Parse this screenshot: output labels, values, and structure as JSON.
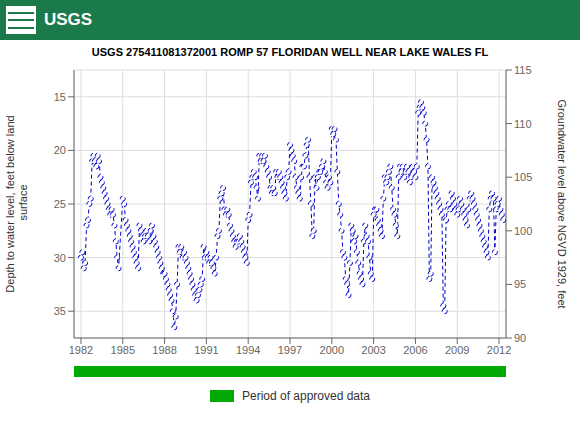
{
  "chart_data": {
    "type": "line",
    "title": "USGS 275411081372001 ROMP 57 FLORIDAN WELL NEAR LAKE WALES FL",
    "y_label": "Depth to water level, feet below land\n surface",
    "y2_label": "Groundwater level above NGVD 1929, feet",
    "annotations": [
      {
        "text": "USGS"
      },
      {
        "text": "Period of approved data",
        "color": "#00aa00"
      }
    ],
    "xlim": [
      1981.5,
      2012.5
    ],
    "xticks": [
      1982,
      1985,
      1988,
      1991,
      1994,
      1997,
      2000,
      2003,
      2006,
      2009,
      2012
    ],
    "ylim": [
      37.5,
      12.5
    ],
    "yticks": [
      15,
      20,
      25,
      30,
      35
    ],
    "y2lim": [
      90,
      115
    ],
    "y2ticks": [
      90,
      95,
      100,
      105,
      110,
      115
    ],
    "grid": true,
    "color": "#0000cc",
    "line_style": "dashed",
    "marker": "circle",
    "x": [
      1982.0,
      1982.1,
      1982.2,
      1982.3,
      1982.4,
      1982.5,
      1982.6,
      1982.7,
      1982.8,
      1982.9,
      1983.0,
      1983.1,
      1983.2,
      1983.3,
      1983.4,
      1983.5,
      1983.6,
      1983.7,
      1983.8,
      1983.9,
      1984.0,
      1984.1,
      1984.2,
      1984.3,
      1984.4,
      1984.5,
      1984.6,
      1984.7,
      1985.0,
      1985.1,
      1985.2,
      1985.3,
      1985.4,
      1985.5,
      1985.6,
      1985.7,
      1985.8,
      1985.9,
      1986.0,
      1986.1,
      1986.2,
      1986.3,
      1986.4,
      1986.5,
      1986.6,
      1986.7,
      1986.8,
      1986.9,
      1987.0,
      1987.1,
      1987.2,
      1987.3,
      1987.4,
      1987.5,
      1987.6,
      1987.7,
      1987.8,
      1987.9,
      1988.0,
      1988.1,
      1988.2,
      1988.3,
      1988.4,
      1988.5,
      1988.6,
      1988.7,
      1988.8,
      1988.9,
      1989.0,
      1989.1,
      1989.2,
      1989.3,
      1989.4,
      1989.5,
      1989.6,
      1989.7,
      1989.8,
      1989.9,
      1990.0,
      1990.1,
      1990.2,
      1990.3,
      1990.4,
      1990.5,
      1990.6,
      1990.7,
      1990.8,
      1990.9,
      1991.0,
      1991.1,
      1991.2,
      1991.3,
      1991.4,
      1991.5,
      1991.6,
      1991.7,
      1991.8,
      1991.9,
      1992.0,
      1992.1,
      1992.2,
      1992.3,
      1992.4,
      1992.5,
      1992.6,
      1992.7,
      1992.8,
      1992.9,
      1993.0,
      1993.1,
      1993.2,
      1993.3,
      1993.4,
      1993.5,
      1993.6,
      1993.7,
      1993.8,
      1993.9,
      1994.0,
      1994.1,
      1994.2,
      1994.3,
      1994.4,
      1994.5,
      1994.6,
      1994.7,
      1994.8,
      1994.9,
      1995.0,
      1995.1,
      1995.2,
      1995.3,
      1995.4,
      1995.5,
      1995.6,
      1995.7,
      1995.8,
      1995.9,
      1996.0,
      1996.1,
      1996.2,
      1996.3,
      1996.4,
      1996.5,
      1996.6,
      1996.7,
      1996.8,
      1996.9,
      1997.0,
      1997.1,
      1997.2,
      1997.3,
      1997.4,
      1997.5,
      1997.6,
      1997.7,
      1997.8,
      1997.9,
      1998.0,
      1998.1,
      1998.2,
      1998.3,
      1998.4,
      1998.5,
      1998.6,
      1998.7,
      1998.8,
      1998.9,
      1999.0,
      1999.1,
      1999.2,
      1999.3,
      1999.4,
      1999.5,
      1999.6,
      1999.7,
      1999.8,
      1999.9,
      2000.0,
      2000.1,
      2000.2,
      2000.3,
      2000.4,
      2000.5,
      2000.6,
      2000.7,
      2000.8,
      2000.9,
      2001.0,
      2001.1,
      2001.2,
      2001.3,
      2001.4,
      2001.5,
      2001.6,
      2001.7,
      2001.8,
      2001.9,
      2002.0,
      2002.1,
      2002.2,
      2002.3,
      2002.4,
      2002.5,
      2002.6,
      2002.7,
      2002.8,
      2002.9,
      2003.0,
      2003.1,
      2003.2,
      2003.3,
      2003.4,
      2003.5,
      2003.6,
      2003.7,
      2003.8,
      2003.9,
      2004.0,
      2004.1,
      2004.2,
      2004.3,
      2004.4,
      2004.5,
      2004.6,
      2004.7,
      2004.8,
      2004.9,
      2005.0,
      2005.1,
      2005.2,
      2005.3,
      2005.4,
      2005.5,
      2005.6,
      2005.7,
      2005.8,
      2005.9,
      2006.0,
      2006.1,
      2006.2,
      2006.3,
      2006.4,
      2006.5,
      2006.6,
      2006.7,
      2006.8,
      2006.9,
      2007.0,
      2007.1,
      2007.2,
      2007.3,
      2007.4,
      2007.5,
      2007.6,
      2007.7,
      2007.8,
      2007.9,
      2008.0,
      2008.1,
      2008.2,
      2008.3,
      2008.4,
      2008.5,
      2008.6,
      2008.7,
      2008.8,
      2008.9,
      2009.0,
      2009.1,
      2009.2,
      2009.3,
      2009.4,
      2009.5,
      2009.6,
      2009.7,
      2009.8,
      2009.9,
      2010.0,
      2010.1,
      2010.2,
      2010.3,
      2010.4,
      2010.5,
      2010.6,
      2010.7,
      2010.8,
      2010.9,
      2011.0,
      2011.1,
      2011.2,
      2011.3,
      2011.4,
      2011.5,
      2011.6,
      2011.7,
      2011.8,
      2011.9,
      2012.0,
      2012.1,
      2012.2,
      2012.3
    ],
    "values": [
      30.0,
      29.5,
      31.0,
      30.5,
      27.0,
      26.5,
      25.0,
      24.5,
      21.0,
      20.5,
      21.0,
      21.5,
      20.5,
      21.0,
      22.5,
      23.0,
      23.5,
      24.0,
      24.5,
      25.0,
      25.5,
      26.0,
      25.5,
      26.0,
      27.0,
      28.5,
      30.0,
      31.0,
      24.5,
      25.0,
      26.5,
      27.0,
      27.5,
      28.0,
      28.5,
      29.0,
      29.5,
      30.0,
      30.5,
      31.0,
      27.0,
      27.5,
      28.0,
      28.5,
      28.0,
      27.5,
      28.0,
      28.5,
      27.5,
      27.0,
      28.0,
      28.5,
      29.0,
      29.5,
      30.0,
      30.5,
      31.0,
      31.5,
      31.5,
      32.0,
      32.5,
      33.0,
      33.5,
      34.0,
      35.0,
      36.5,
      35.5,
      32.5,
      29.0,
      29.5,
      29.0,
      30.0,
      29.5,
      30.0,
      30.5,
      31.0,
      31.5,
      32.0,
      32.5,
      33.0,
      33.5,
      34.0,
      33.5,
      33.0,
      32.5,
      32.0,
      29.0,
      30.0,
      29.5,
      30.0,
      30.5,
      30.0,
      30.5,
      31.0,
      31.5,
      30.0,
      28.0,
      27.5,
      24.5,
      24.0,
      23.5,
      25.5,
      26.0,
      25.5,
      26.0,
      27.0,
      27.5,
      28.0,
      28.5,
      29.0,
      28.5,
      28.5,
      28.0,
      28.5,
      29.0,
      29.5,
      30.0,
      30.5,
      26.5,
      26.0,
      23.0,
      22.5,
      22.0,
      22.5,
      23.5,
      24.5,
      20.5,
      21.0,
      20.5,
      21.0,
      20.5,
      21.5,
      22.0,
      22.5,
      23.5,
      24.0,
      23.5,
      24.0,
      22.0,
      22.5,
      22.0,
      22.5,
      23.0,
      23.5,
      24.0,
      24.5,
      22.5,
      22.0,
      19.5,
      20.0,
      20.5,
      21.0,
      22.5,
      23.5,
      24.0,
      24.5,
      22.5,
      21.5,
      21.5,
      20.5,
      19.5,
      19.0,
      22.5,
      25.0,
      28.0,
      27.5,
      22.5,
      23.5,
      22.5,
      22.0,
      22.0,
      21.5,
      21.0,
      22.0,
      23.0,
      23.5,
      22.5,
      23.0,
      18.0,
      18.5,
      18.0,
      19.0,
      22.0,
      25.0,
      26.0,
      27.5,
      29.5,
      30.0,
      32.0,
      32.5,
      33.5,
      30.5,
      27.0,
      27.5,
      28.5,
      28.0,
      29.5,
      30.5,
      31.5,
      32.0,
      32.5,
      28.5,
      27.0,
      28.0,
      28.5,
      30.0,
      31.5,
      32.0,
      26.0,
      25.5,
      25.5,
      26.5,
      27.0,
      27.5,
      28.0,
      24.5,
      22.5,
      23.0,
      22.5,
      22.0,
      21.5,
      23.5,
      25.5,
      26.0,
      27.0,
      28.0,
      22.5,
      21.5,
      22.0,
      21.5,
      22.5,
      22.0,
      21.5,
      22.0,
      23.0,
      22.5,
      21.5,
      22.0,
      22.5,
      21.5,
      16.5,
      16.0,
      15.5,
      16.0,
      16.5,
      17.5,
      19.0,
      21.5,
      32.0,
      31.5,
      22.5,
      23.0,
      23.5,
      24.0,
      24.5,
      25.0,
      25.5,
      26.0,
      34.5,
      35.0,
      26.5,
      25.5,
      25.0,
      25.5,
      24.0,
      24.5,
      25.0,
      25.5,
      26.0,
      25.5,
      24.5,
      25.0,
      25.5,
      26.0,
      26.5,
      27.0,
      25.5,
      24.5,
      24.0,
      24.5,
      25.0,
      25.5,
      26.0,
      26.5,
      27.0,
      27.5,
      28.0,
      28.5,
      29.0,
      29.5,
      30.0,
      25.5,
      24.5,
      24.0,
      24.5,
      29.5,
      25.5,
      25.0,
      24.5,
      25.5,
      26.0,
      26.5
    ]
  }
}
